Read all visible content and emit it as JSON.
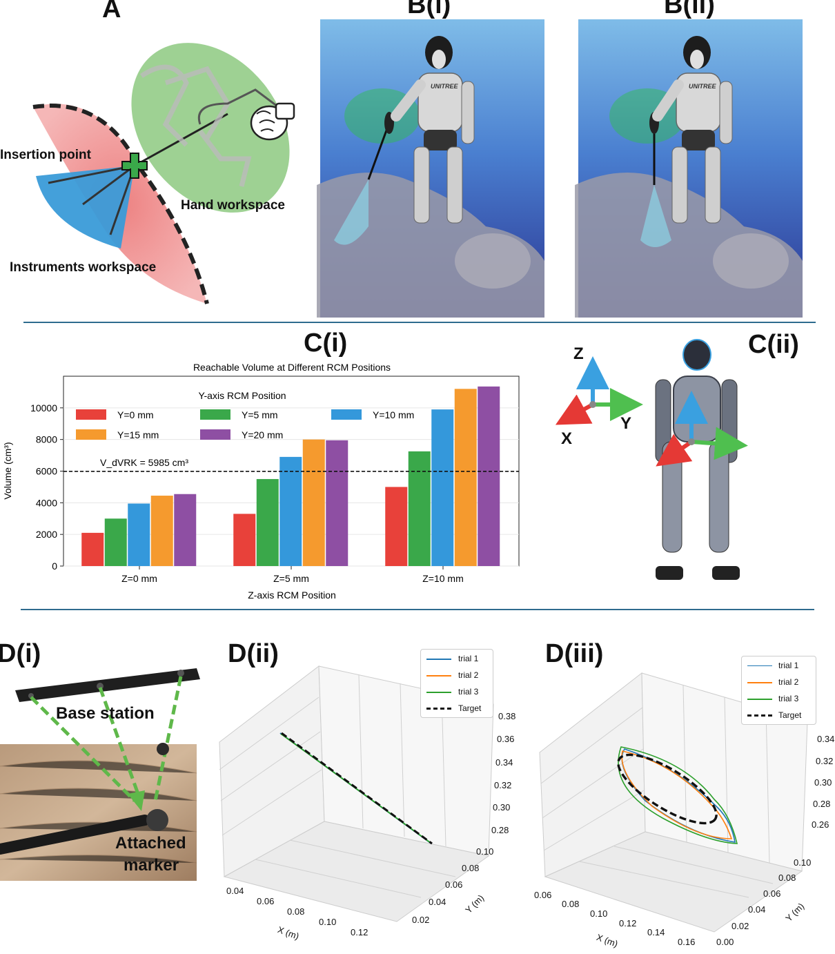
{
  "panels": {
    "a": "A",
    "b1": "B(i)",
    "b2": "B(ii)",
    "c1": "C(i)",
    "c2": "C(ii)",
    "d1": "D(i)",
    "d2": "D(ii)",
    "d3": "D(iii)"
  },
  "panel_a": {
    "insertion_point": "Insertion point",
    "hand_workspace": "Hand workspace",
    "instruments_workspace": "Instruments workspace"
  },
  "robot_logo": "UNITREE",
  "axes_c2": {
    "z": "Z",
    "y": "Y",
    "x": "X"
  },
  "panel_d1": {
    "base_station": "Base station",
    "attached_marker_1": "Attached",
    "attached_marker_2": "marker"
  },
  "colors": {
    "red": "#e8413a",
    "green": "#3aa84a",
    "blue": "#3498db",
    "orange": "#f59a2e",
    "purple": "#8e4fa3",
    "divider": "#2e6b8e",
    "mpl_blue": "#1f77b4",
    "mpl_orange": "#ff7f0e",
    "mpl_green": "#2ca02c"
  },
  "chart_data": [
    {
      "type": "bar",
      "title": "Reachable Volume at Different RCM Positions",
      "xlabel": "Z-axis RCM Position",
      "ylabel": "Volume (cm³)",
      "categories": [
        "Z=0 mm",
        "Z=5 mm",
        "Z=10 mm"
      ],
      "legend_title": "Y-axis RCM Position",
      "ylim": [
        0,
        12000
      ],
      "yticks": [
        "0",
        "2000",
        "4000",
        "6000",
        "8000",
        "10000"
      ],
      "series": [
        {
          "name": "Y=0 mm",
          "values": [
            2100,
            3300,
            5000
          ],
          "color": "#e8413a"
        },
        {
          "name": "Y=5 mm",
          "values": [
            3000,
            5500,
            7250
          ],
          "color": "#3aa84a"
        },
        {
          "name": "Y=10 mm",
          "values": [
            3950,
            6900,
            9900
          ],
          "color": "#3498db"
        },
        {
          "name": "Y=15 mm",
          "values": [
            4450,
            8000,
            11200
          ],
          "color": "#f59a2e"
        },
        {
          "name": "Y=20 mm",
          "values": [
            4550,
            7950,
            11350
          ],
          "color": "#8e4fa3"
        }
      ],
      "reference_line": {
        "label": "V_dVRK = 5985 cm³",
        "value": 5985
      }
    },
    {
      "type": "line",
      "panel": "D(ii)",
      "legend": [
        "trial 1",
        "trial 2",
        "trial 3",
        "Target"
      ],
      "x_label": "X (m)",
      "y_label": "Y (m)",
      "x_ticks": [
        "0.04",
        "0.06",
        "0.08",
        "0.10",
        "0.12"
      ],
      "y_ticks": [
        "0.02",
        "0.04",
        "0.06",
        "0.08",
        "0.10"
      ],
      "z_ticks": [
        "0.28",
        "0.30",
        "0.32",
        "0.34",
        "0.36",
        "0.38"
      ]
    },
    {
      "type": "line",
      "panel": "D(iii)",
      "legend": [
        "trial 1",
        "trial 2",
        "trial 3",
        "Target"
      ],
      "x_label": "X (m)",
      "y_label": "Y (m)",
      "x_ticks": [
        "0.06",
        "0.08",
        "0.10",
        "0.12",
        "0.14",
        "0.16"
      ],
      "y_ticks": [
        "0.00",
        "0.02",
        "0.04",
        "0.06",
        "0.08",
        "0.10"
      ],
      "z_ticks": [
        "0.26",
        "0.28",
        "0.30",
        "0.32",
        "0.34"
      ]
    }
  ]
}
